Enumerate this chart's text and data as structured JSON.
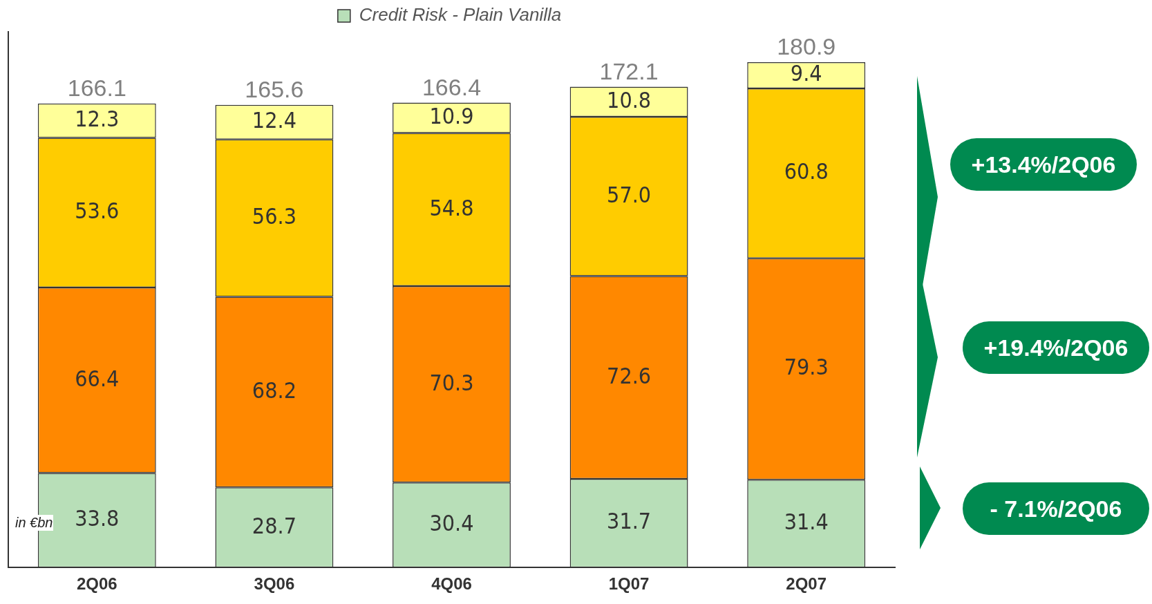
{
  "chart_data": {
    "type": "bar",
    "stacked": true,
    "legend": "top",
    "categories": [
      "2Q06",
      "3Q06",
      "4Q06",
      "1Q07",
      "2Q07"
    ],
    "series": [
      {
        "name": "Credit Risk - Plain Vanilla",
        "color": "#b8dfb8",
        "values": [
          33.8,
          28.7,
          30.4,
          31.7,
          31.4
        ],
        "value_labels": [
          "33.8",
          "28.7",
          "30.4",
          "31.7",
          "31.4"
        ]
      },
      {
        "color": "#ff8800",
        "values": [
          66.4,
          68.2,
          70.3,
          72.6,
          79.3
        ],
        "value_labels": [
          "66.4",
          "68.2",
          "70.3",
          "72.6",
          "79.3"
        ]
      },
      {
        "color": "#ffcc00",
        "values": [
          53.6,
          56.3,
          54.8,
          57.0,
          60.8
        ],
        "value_labels": [
          "53.6",
          "56.3",
          "54.8",
          "57.0",
          "60.8"
        ]
      },
      {
        "color": "#ffff99",
        "values": [
          12.3,
          12.4,
          10.9,
          10.8,
          9.4
        ],
        "value_labels": [
          "12.3",
          "12.4",
          "10.9",
          "10.8",
          "9.4"
        ]
      }
    ],
    "totals": [
      "166.1",
      "165.6",
      "166.4",
      "172.1",
      "180.9"
    ],
    "annotations": [
      "+13.4%/2Q06",
      "+19.4%/2Q06",
      "- 7.1%/2Q06",
      "in €bn"
    ]
  }
}
